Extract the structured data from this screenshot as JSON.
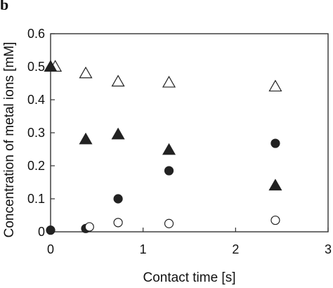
{
  "panel_label": "b",
  "chart_data": {
    "type": "scatter",
    "title": "",
    "xlabel": "Contact time [s]",
    "ylabel": "Concentration of metal ions [mM]",
    "xlim": [
      0,
      3
    ],
    "ylim": [
      0,
      0.6
    ],
    "xticks": [
      0,
      1,
      2,
      3
    ],
    "yticks": [
      0,
      0.1,
      0.2,
      0.3,
      0.4,
      0.5,
      0.6
    ],
    "xtick_labels": [
      "0",
      "1",
      "2",
      "3"
    ],
    "ytick_labels": [
      "0",
      "0.1",
      "0.2",
      "0.3",
      "0.4",
      "0.5",
      "0.6"
    ],
    "grid": false,
    "legend": false,
    "series": [
      {
        "marker": "triangle-open",
        "x": [
          0.05,
          0.38,
          0.73,
          1.28,
          2.43
        ],
        "y": [
          0.5,
          0.48,
          0.455,
          0.452,
          0.44
        ]
      },
      {
        "marker": "triangle-filled",
        "x": [
          0.0,
          0.38,
          0.73,
          1.28,
          2.43
        ],
        "y": [
          0.5,
          0.28,
          0.295,
          0.248,
          0.14
        ]
      },
      {
        "marker": "circle-filled",
        "x": [
          0.0,
          0.38,
          0.73,
          1.28,
          2.43
        ],
        "y": [
          0.005,
          0.01,
          0.1,
          0.185,
          0.268
        ]
      },
      {
        "marker": "circle-open",
        "x": [
          0.42,
          0.73,
          1.28,
          2.43
        ],
        "y": [
          0.015,
          0.028,
          0.025,
          0.035
        ]
      }
    ]
  }
}
